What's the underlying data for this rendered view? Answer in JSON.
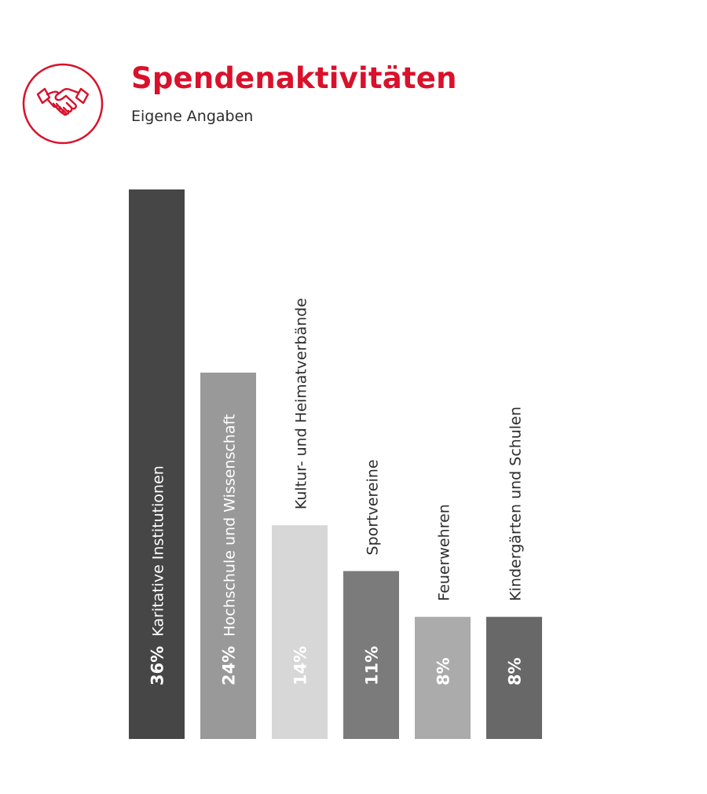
{
  "header": {
    "title": "Spendenaktivitäten",
    "subtitle": "Eigene Angaben",
    "logo_icon": "handshake-icon",
    "accent_color": "#d9112b"
  },
  "chart_data": {
    "type": "bar",
    "title": "Spendenaktivitäten",
    "subtitle": "Eigene Angaben",
    "xlabel": "",
    "ylabel": "",
    "ylim": [
      0,
      36
    ],
    "grid": false,
    "legend": "none",
    "categories": [
      "Karitative Institutionen",
      "Hochschule und Wissenschaft",
      "Kultur- und Heimatverbände",
      "Sportvereine",
      "Feuerwehren",
      "Kindergärten und Schulen"
    ],
    "values": [
      36,
      24,
      14,
      11,
      8,
      8
    ],
    "value_labels": [
      "36%",
      "24%",
      "14%",
      "11%",
      "8%",
      "8%"
    ],
    "colors": [
      "#464646",
      "#999999",
      "#d7d7d7",
      "#7b7b7b",
      "#ababab",
      "#686868"
    ],
    "value_label_colors": [
      "#ffffff",
      "#ffffff",
      "#ffffff",
      "#ffffff",
      "#ffffff",
      "#ffffff"
    ],
    "category_label_colors": [
      "#ffffff",
      "#ffffff",
      "#2d2d2d",
      "#2d2d2d",
      "#2d2d2d",
      "#2d2d2d"
    ]
  }
}
